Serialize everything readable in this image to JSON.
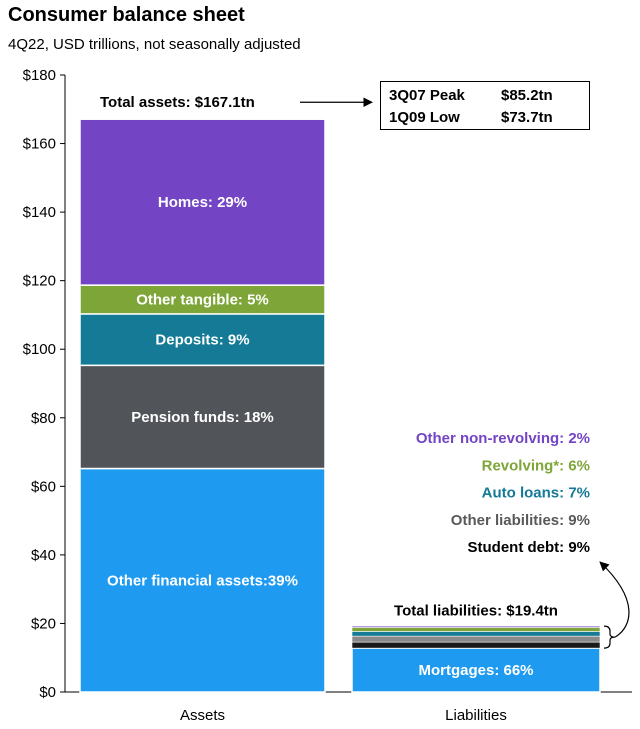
{
  "header": {
    "title": "Consumer balance sheet",
    "subtitle": "4Q22, USD trillions, not seasonally adjusted"
  },
  "peak_box": {
    "rows": [
      {
        "label": "3Q07 Peak",
        "value": "$85.2tn"
      },
      {
        "label": "1Q09 Low",
        "value": "$73.7tn"
      }
    ]
  },
  "colors": {
    "homes": "#7344c4",
    "other_tangible": "#7ea538",
    "deposits": "#147a96",
    "pension": "#515459",
    "other_financial": "#1e9bf0",
    "mortgages": "#1e9bf0",
    "student_debt": "#1a1a1a",
    "other_liabilities": "#8a8a8a"
  },
  "chart_data": {
    "type": "bar",
    "stacked": true,
    "categories": [
      "Assets",
      "Liabilities"
    ],
    "ylim": [
      0,
      180
    ],
    "yticks": [
      0,
      20,
      40,
      60,
      80,
      100,
      120,
      140,
      160,
      180
    ],
    "ytick_labels": [
      "$0",
      "$20",
      "$40",
      "$60",
      "$80",
      "$100",
      "$120",
      "$140",
      "$160",
      "$180"
    ],
    "assets": {
      "total_label": "Total assets: $167.1tn",
      "total": 167.1,
      "segments": [
        {
          "label": "Other financial assets:39%",
          "value": 65.2,
          "color": "#1e9bf0"
        },
        {
          "label": "Pension funds: 18%",
          "value": 30.1,
          "color": "#515459"
        },
        {
          "label": "Deposits: 9%",
          "value": 15.0,
          "color": "#147a96"
        },
        {
          "label": "Other tangible: 5%",
          "value": 8.4,
          "color": "#7ea538"
        },
        {
          "label": "Homes: 29%",
          "value": 48.4,
          "color": "#7344c4"
        }
      ]
    },
    "liabilities": {
      "total_label": "Total liabilities: $19.4tn",
      "total": 19.4,
      "segments": [
        {
          "label": "Mortgages: 66%",
          "value": 12.8,
          "color": "#1e9bf0"
        },
        {
          "label": "Student debt: 9%",
          "value": 1.75,
          "color": "#1a1a1a",
          "text_color": "#000000"
        },
        {
          "label": "Other liabilities: 9%",
          "value": 1.75,
          "color": "#8a8a8a",
          "text_color": "#595959"
        },
        {
          "label": "Auto loans: 7%",
          "value": 1.36,
          "color": "#147a96",
          "text_color": "#147a96"
        },
        {
          "label": "Revolving*: 6%",
          "value": 1.16,
          "color": "#7ea538",
          "text_color": "#7ea538"
        },
        {
          "label": "Other non-revolving: 2%",
          "value": 0.39,
          "color": "#7344c4",
          "text_color": "#7344c4"
        }
      ]
    }
  }
}
